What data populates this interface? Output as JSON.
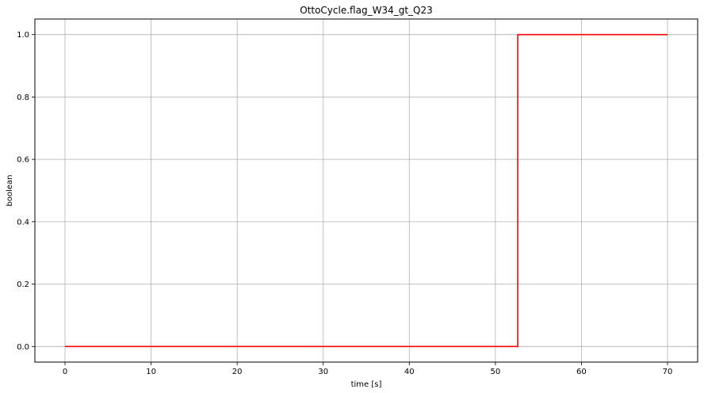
{
  "chart_data": {
    "type": "line",
    "title": "OttoCycle.flag_W34_gt_Q23",
    "xlabel": "time [s]",
    "ylabel": "boolean",
    "xlim": [
      -3.5,
      73.5
    ],
    "ylim": [
      -0.05,
      1.05
    ],
    "xticks": [
      0,
      10,
      20,
      30,
      40,
      50,
      60,
      70
    ],
    "yticks": [
      0.0,
      0.2,
      0.4,
      0.6,
      0.8,
      1.0
    ],
    "xtick_labels": [
      "0",
      "10",
      "20",
      "30",
      "40",
      "50",
      "60",
      "70"
    ],
    "ytick_labels": [
      "0.0",
      "0.2",
      "0.4",
      "0.6",
      "0.8",
      "1.0"
    ],
    "grid": true,
    "line_style": "step",
    "series": [
      {
        "color": "#ff0000",
        "x": [
          0,
          52.6,
          52.6,
          70
        ],
        "y": [
          0,
          0,
          1,
          1
        ]
      }
    ]
  }
}
